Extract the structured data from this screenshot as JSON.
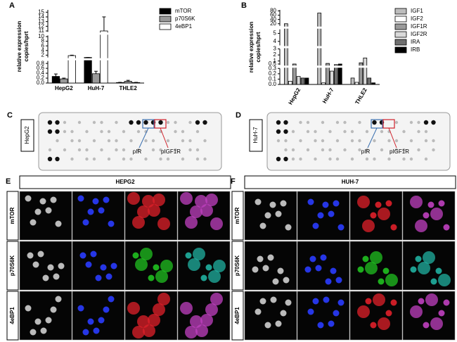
{
  "chart_data": [
    {
      "type": "bar",
      "label": "A",
      "ylabel": [
        "relative expression",
        "copies/hprt"
      ],
      "categories": [
        "HepG2",
        "HuH-7",
        "THLE2"
      ],
      "y_segments": [
        {
          "ylim": [
            0,
            0.9
          ],
          "yticks": [
            {
              "value": 0,
              "label": "0.0"
            },
            0.2,
            0.4,
            0.6,
            0.8
          ]
        },
        {
          "ylim": [
            1,
            10.5
          ],
          "yticks": [
            2,
            4,
            6,
            8,
            10
          ]
        },
        {
          "ylim": [
            10.8,
            15.5
          ],
          "yticks": [
            11,
            12,
            13,
            14,
            15
          ]
        }
      ],
      "legend": "right",
      "series": [
        {
          "name": "mTOR",
          "color": "#000000",
          "values": [
            0.27,
            1.0,
            0.02
          ],
          "errors": [
            0.1,
            0.02,
            0.01
          ]
        },
        {
          "name": "p70S6K",
          "color": "#999999",
          "values": [
            0.17,
            0.38,
            0.07
          ],
          "errors": [
            0.03,
            0.1,
            0.04
          ]
        },
        {
          "name": "4eBP1",
          "color": "#ffffff",
          "values": [
            1.8,
            11,
            0.02
          ],
          "errors": [
            0.2,
            3,
            0.01
          ]
        }
      ]
    },
    {
      "type": "bar",
      "label": "B",
      "ylabel": [
        "relative expression",
        "copies/hprt"
      ],
      "categories": [
        "HepG2",
        "HuH-7",
        "THLE2"
      ],
      "y_segments": [
        {
          "ylim": [
            0,
            0.3
          ],
          "yticks": [
            {
              "value": 0,
              "label": "0.0"
            },
            0.1,
            0.2,
            0.3
          ]
        },
        {
          "ylim": [
            0.35,
            3
          ],
          "yticks": [
            0.5,
            1,
            2,
            3
          ]
        },
        {
          "ylim": [
            3.5,
            5.5
          ],
          "yticks": [
            4,
            5
          ]
        },
        {
          "ylim": [
            10,
            85
          ],
          "yticks": [
            20,
            40,
            60,
            80
          ]
        }
      ],
      "legend": "right",
      "series": [
        {
          "name": "IGF1",
          "color": "#bdbdbd",
          "values": [
            20,
            70,
            0.12
          ]
        },
        {
          "name": "IGF2",
          "color": "#ffffff",
          "values": [
            0.06,
            0.03,
            0.04
          ]
        },
        {
          "name": "IGF1R",
          "color": "#9a9a9a",
          "values": [
            0.5,
            0.6,
            0.7
          ]
        },
        {
          "name": "IGF2R",
          "color": "#d9d9d9",
          "values": [
            0.15,
            0.25,
            1.5
          ]
        },
        {
          "name": "IRA",
          "color": "#6f6f6f",
          "values": [
            0.12,
            0.4,
            0.12
          ]
        },
        {
          "name": "IRB",
          "color": "#000000",
          "values": [
            0.12,
            0.5,
            0.03
          ]
        }
      ]
    }
  ],
  "blots": [
    {
      "label": "C",
      "sample": "HepG2",
      "annotations": [
        "pIR",
        "pIGF1R"
      ]
    },
    {
      "label": "D",
      "sample": "HuH-7",
      "annotations": [
        "pIR",
        "pIGF1R"
      ]
    }
  ],
  "microscopy": [
    {
      "label": "E",
      "title": "HEPG2",
      "rows": [
        "mTOR",
        "p70S6K",
        "4eBP1"
      ]
    },
    {
      "label": "F",
      "title": "HUH-7",
      "rows": [
        "mTOR",
        "p70S6K",
        "4eBP1"
      ]
    }
  ]
}
